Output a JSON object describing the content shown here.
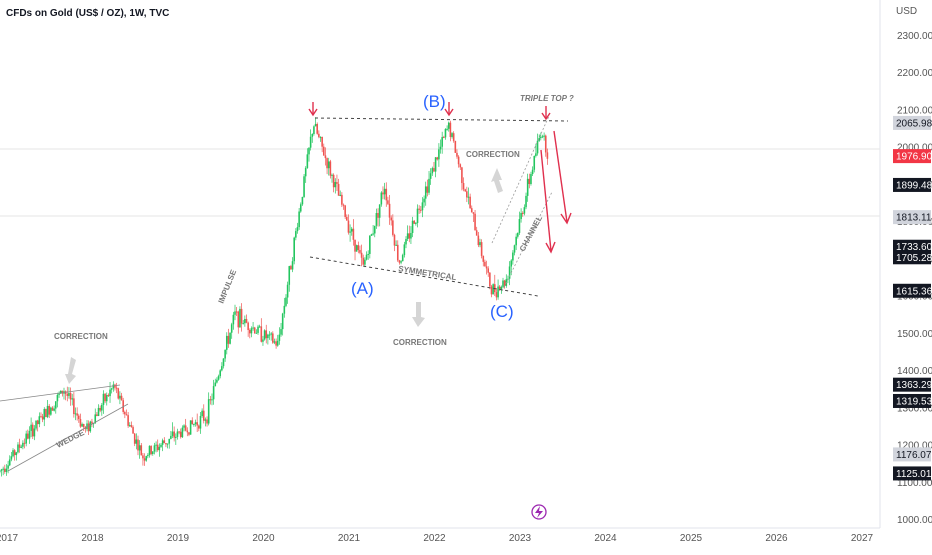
{
  "header": {
    "title": "CFDs on Gold (US$ / OZ), 1W, TVC"
  },
  "price_axis": {
    "unit": "USD",
    "ticks": [
      2300,
      2200,
      2100,
      2000,
      1900,
      1800,
      1700,
      1600,
      1500,
      1400,
      1300,
      1200,
      1100,
      1000
    ],
    "tick_labels": [
      "2300.00",
      "2200.00",
      "2100.00",
      "2000.00",
      "1900.00",
      "1800.00",
      "1700.00",
      "1600.00",
      "1500.00",
      "1400.00",
      "1300.00",
      "1200.00",
      "1100.00",
      "1000.00"
    ]
  },
  "time_axis": {
    "labels": [
      "2017",
      "2018",
      "2019",
      "2020",
      "2021",
      "2022",
      "2023",
      "2024",
      "2025",
      "2026",
      "2027"
    ]
  },
  "price_tags": [
    {
      "label": "2065.98",
      "value": 2065.98,
      "style": "light"
    },
    {
      "label": "1976.90",
      "value": 1976.9,
      "style": "red"
    },
    {
      "label": "1899.48",
      "value": 1899.48,
      "style": "dark"
    },
    {
      "label": "1813.11",
      "value": 1813.11,
      "style": "light"
    },
    {
      "label": "1733.60",
      "value": 1733.6,
      "style": "dark"
    },
    {
      "label": "1705.28",
      "value": 1705.28,
      "style": "dark"
    },
    {
      "label": "1615.36",
      "value": 1615.36,
      "style": "dark"
    },
    {
      "label": "1363.29",
      "value": 1363.29,
      "style": "dark"
    },
    {
      "label": "1319.53",
      "value": 1319.53,
      "style": "dark"
    },
    {
      "label": "1176.07",
      "value": 1176.07,
      "style": "light"
    },
    {
      "label": "1125.01",
      "value": 1125.01,
      "style": "dark"
    }
  ],
  "annotations": {
    "triple_top": "TRIPLE TOP ?",
    "correction_top": "CORRECTION",
    "correction_mid": "CORRECTION",
    "correction_left": "CORRECTION",
    "impulse": "IMPULSE",
    "symmetrical": "SYMMETRICAL",
    "channel": "CHANNEL",
    "wedge": "WEDGE",
    "wave_a": "(A)",
    "wave_b": "(B)",
    "wave_c": "(C)"
  },
  "colors": {
    "up": "#26a69a",
    "down": "#ef5350",
    "up_bright": "#22c55e",
    "arrow": "#e0304e",
    "wave": "#2962ff"
  },
  "chart_data": {
    "type": "candlestick",
    "title": "CFDs on Gold (US$ / OZ), 1W, TVC",
    "ylabel": "USD",
    "ylim": [
      1000,
      2350
    ],
    "xlim": [
      "2016-10",
      "2027-06"
    ],
    "grid": false,
    "keypoints": [
      {
        "date": "2016-12",
        "price": 1130
      },
      {
        "date": "2017-09",
        "price": 1350
      },
      {
        "date": "2017-12",
        "price": 1240
      },
      {
        "date": "2018-04",
        "price": 1360
      },
      {
        "date": "2018-08",
        "price": 1170
      },
      {
        "date": "2019-05",
        "price": 1280
      },
      {
        "date": "2019-09",
        "price": 1550
      },
      {
        "date": "2020-03",
        "price": 1470
      },
      {
        "date": "2020-08",
        "price": 2065
      },
      {
        "date": "2021-03",
        "price": 1680
      },
      {
        "date": "2021-06",
        "price": 1900
      },
      {
        "date": "2021-08",
        "price": 1690
      },
      {
        "date": "2022-03",
        "price": 2060
      },
      {
        "date": "2022-09",
        "price": 1615
      },
      {
        "date": "2022-11",
        "price": 1640
      },
      {
        "date": "2023-04",
        "price": 2050
      },
      {
        "date": "2023-05",
        "price": 1976.9
      }
    ]
  }
}
